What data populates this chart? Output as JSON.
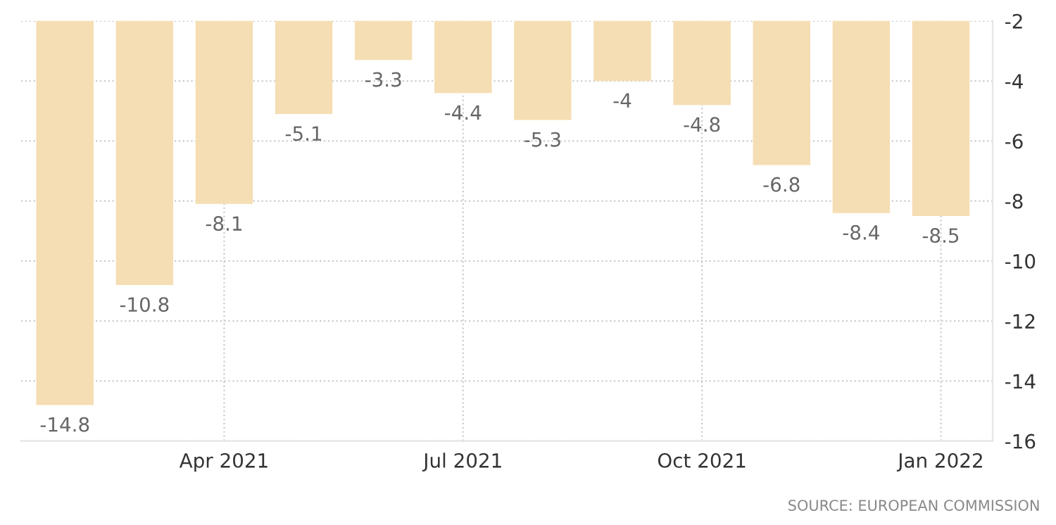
{
  "chart_data": {
    "type": "bar",
    "categories": [
      null,
      null,
      "Apr 2021",
      null,
      null,
      "Jul 2021",
      null,
      null,
      "Oct 2021",
      null,
      null,
      "Jan 2022"
    ],
    "values": [
      -14.8,
      -10.8,
      -8.1,
      -5.1,
      -3.3,
      -4.4,
      -5.3,
      -4,
      -4.8,
      -6.8,
      -8.4,
      -8.5
    ],
    "color": "#f5deb3",
    "ylim": [
      -16,
      -2
    ],
    "yticks": [
      -2,
      -4,
      -6,
      -8,
      -10,
      -12,
      -14,
      -16
    ],
    "grid": true,
    "data_labels": true,
    "annotations": [
      "SOURCE: EUROPEAN COMMISSION"
    ]
  }
}
